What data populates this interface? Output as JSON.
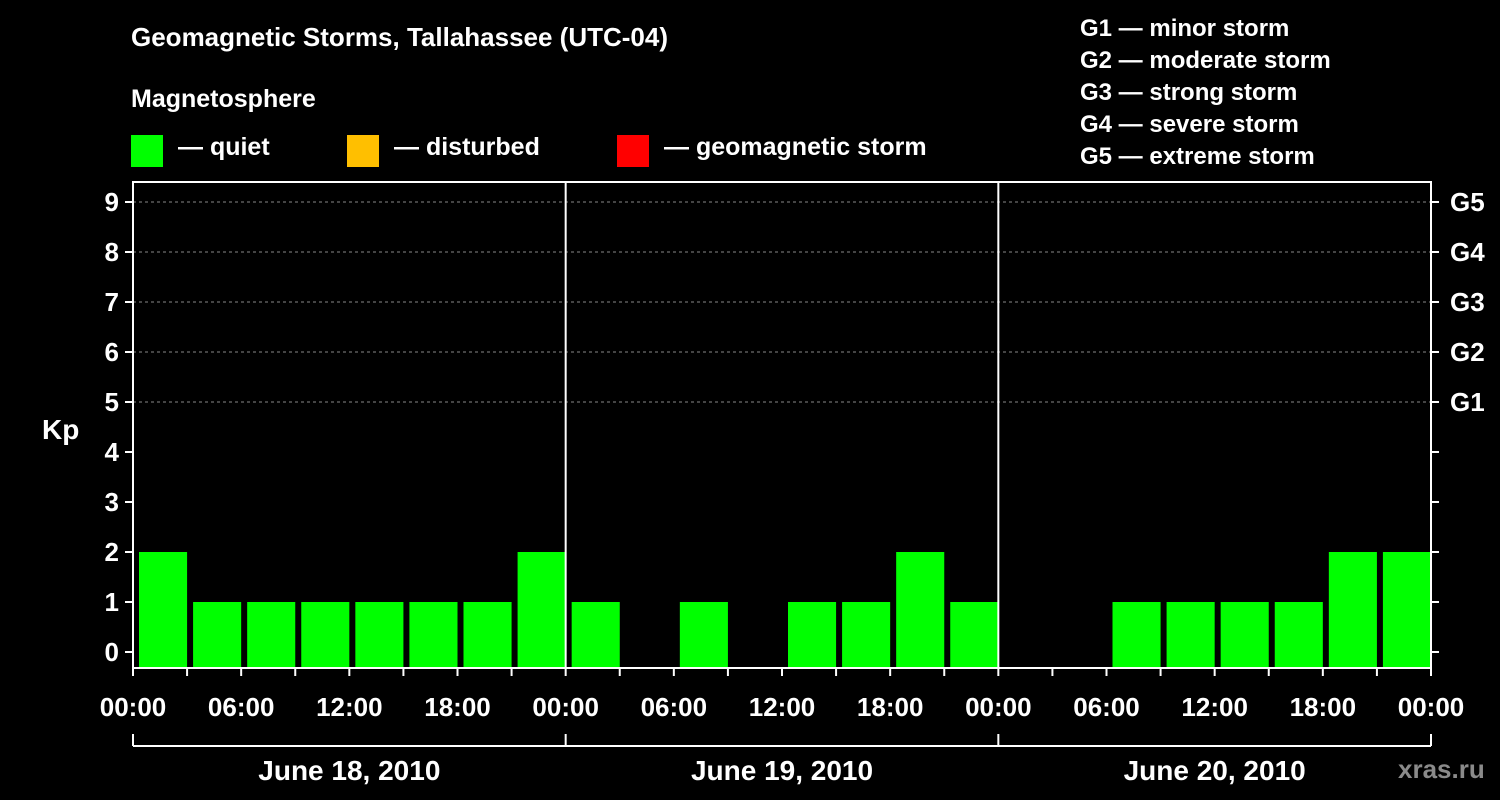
{
  "title": "Geomagnetic Storms, Tallahassee (UTC-04)",
  "subtitle": "Magnetosphere",
  "legend": [
    {
      "label": "— quiet",
      "color": "#00ff00"
    },
    {
      "label": "— disturbed",
      "color": "#ffbf00"
    },
    {
      "label": "— geomagnetic storm",
      "color": "#ff0000"
    }
  ],
  "storm_scale": [
    "G1 — minor storm",
    "G2 — moderate storm",
    "G3 — strong storm",
    "G4 — severe storm",
    "G5 — extreme storm"
  ],
  "watermark": "xras.ru",
  "chart_data": {
    "type": "bar",
    "ylabel": "Kp",
    "ylim": [
      0,
      9
    ],
    "yticks": [
      "0",
      "1",
      "2",
      "3",
      "4",
      "5",
      "6",
      "7",
      "8",
      "9"
    ],
    "right_axis_labels": [
      {
        "kp": 5,
        "label": "G1"
      },
      {
        "kp": 6,
        "label": "G2"
      },
      {
        "kp": 7,
        "label": "G3"
      },
      {
        "kp": 8,
        "label": "G4"
      },
      {
        "kp": 9,
        "label": "G5"
      }
    ],
    "xtick_labels": [
      "00:00",
      "06:00",
      "12:00",
      "18:00",
      "00:00",
      "06:00",
      "12:00",
      "18:00",
      "00:00",
      "06:00",
      "12:00",
      "18:00",
      "00:00"
    ],
    "days": [
      "June 18, 2010",
      "June 19, 2010",
      "June 20, 2010"
    ],
    "interval_hours": 3,
    "values": [
      2,
      1,
      1,
      1,
      1,
      1,
      1,
      2,
      1,
      0,
      1,
      0,
      1,
      1,
      2,
      1,
      0,
      0,
      1,
      1,
      1,
      1,
      2,
      2
    ],
    "bar_color": "#00ff00",
    "grid": "dashed horizontal at Kp 5-9"
  }
}
